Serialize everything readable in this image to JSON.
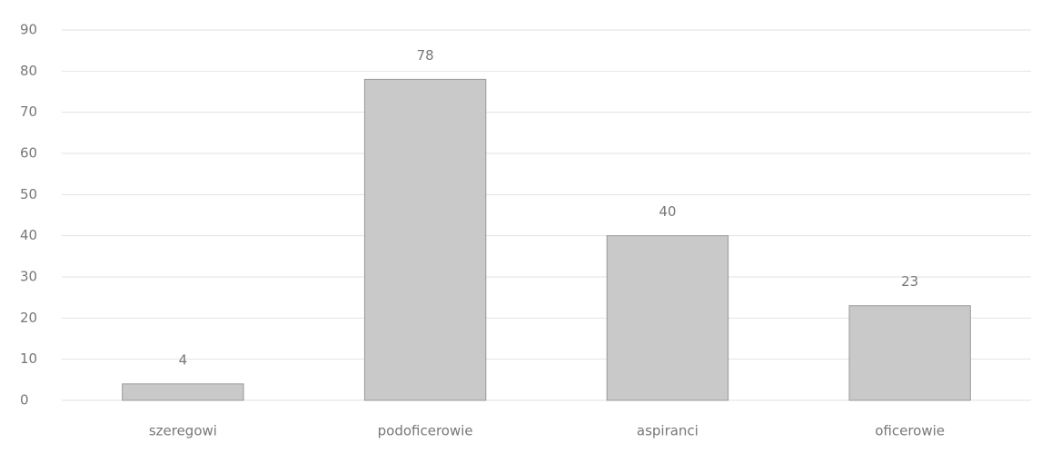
{
  "chart_data": {
    "type": "bar",
    "categories": [
      "szeregowi",
      "podoficerowie",
      "aspiranci",
      "oficerowie"
    ],
    "values": [
      4,
      78,
      40,
      23
    ],
    "color": "#c9c9c9",
    "ylim": [
      0,
      90
    ],
    "yticks": [
      0,
      10,
      20,
      30,
      40,
      50,
      60,
      70,
      80,
      90
    ],
    "grid": true
  }
}
